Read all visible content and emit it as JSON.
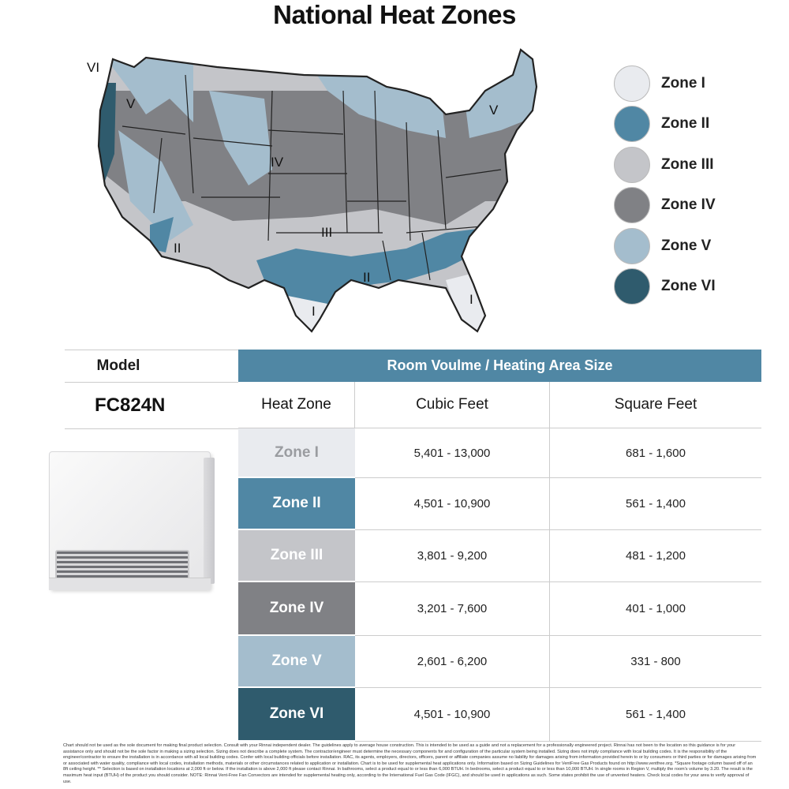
{
  "title": "National Heat Zones",
  "colors": {
    "zone_i": "#e9ebef",
    "zone_ii": "#5087a4",
    "zone_iii": "#c4c5c9",
    "zone_iv": "#808185",
    "zone_v": "#a4bdcd",
    "zone_vi": "#2f5b6d",
    "header": "#5087a4"
  },
  "map": {
    "labels": [
      "VI",
      "V",
      "IV",
      "III",
      "II",
      "II",
      "I",
      "I",
      "V"
    ]
  },
  "legend": [
    {
      "label": "Zone I",
      "color": "#e9ebef"
    },
    {
      "label": "Zone II",
      "color": "#5087a4"
    },
    {
      "label": "Zone III",
      "color": "#c4c5c9"
    },
    {
      "label": "Zone IV",
      "color": "#808185"
    },
    {
      "label": "Zone V",
      "color": "#a4bdcd"
    },
    {
      "label": "Zone VI",
      "color": "#2f5b6d"
    }
  ],
  "table": {
    "model_header": "Model",
    "model": "FC824N",
    "group_header": "Room Voulme / Heating Area Size",
    "columns": [
      "Heat Zone",
      "Cubic Feet",
      "Square Feet"
    ],
    "rows": [
      {
        "zone": "Zone I",
        "cubic": "5,401 - 13,000",
        "square": "681 - 1,600",
        "color": "#e9ebef",
        "text": "#9a9ca0"
      },
      {
        "zone": "Zone II",
        "cubic": "4,501 - 10,900",
        "square": "561 - 1,400",
        "color": "#5087a4",
        "text": "#ffffff"
      },
      {
        "zone": "Zone III",
        "cubic": "3,801 - 9,200",
        "square": "481 - 1,200",
        "color": "#c4c5c9",
        "text": "#ffffff"
      },
      {
        "zone": "Zone IV",
        "cubic": "3,201 - 7,600",
        "square": "401 - 1,000",
        "color": "#808185",
        "text": "#ffffff"
      },
      {
        "zone": "Zone V",
        "cubic": "2,601 - 6,200",
        "square": "331 - 800",
        "color": "#a4bdcd",
        "text": "#ffffff"
      },
      {
        "zone": "Zone VI",
        "cubic": "4,501 - 10,900",
        "square": "561 - 1,400",
        "color": "#2f5b6d",
        "text": "#ffffff"
      }
    ]
  },
  "disclaimer": "Chart should not be used as the sole document for making final product selection. Consult with your Rinnai independent dealer. The guidelines apply to average house construction. This is intended to be used as a guide and not a replacement for a professionally engineered project. Rinnai has not been to the location so this guidance is for your assistance only and should not be the sole factor in making a sizing selection. Sizing does not describe a complete system. The contractor/engineer must determine the necessary components for and configuration of the particular system being installed. Sizing does not imply compliance with local building codes. It is the responsibility of the engineer/contractor to ensure the installation is in accordance with all local building codes. Confer with local building officials before installation. RAC, its agents, employers, directors, officers, parent or affiliate companies assume no liability for damages arising from information provided herein to or by consumers or third parties or for damages arising from or associated with water quality, compliance with local codes, installation methods, materials or other circumstances related to application or installation. Chart is to be used for supplemental heat applications only. Information based on Sizing Guidelines for VentFree Gas Products found on http://www.ventfree.org. *Square footage column based off of an 8ft ceiling height. ** Selection is based on installation locations at 2,000 ft or below. If the installation is above 2,000 ft please contact Rinnai. In bathrooms, select a product equal to or less than 6,000 BTUH. In bedrooms, select a product equal to or less than 10,000 BTUH. In single rooms in Region V, multiply the room's volume by 3.20. The result is the maximum heat input (BTUH) of the product you should consider. NOTE: Rinnai Vent-Free Fan Convectors are intended for supplemental heating only, according to the International Fuel Gas Code (IFGC), and should be used in applications as such. Some states prohibit the use of unvented heaters. Check local codes for your area to verify approval of use."
}
